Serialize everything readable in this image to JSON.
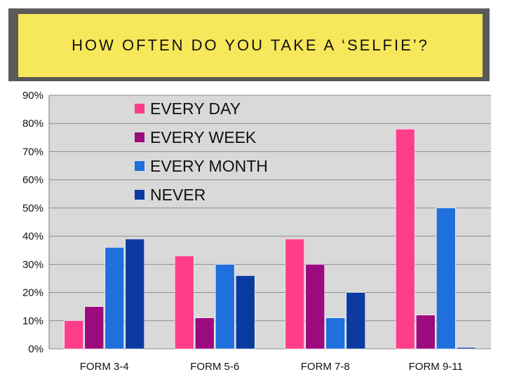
{
  "title": "HOW OFTEN DO YOU TAKE A ‘SELFIE’?",
  "colors": {
    "title_bg": "#f7e75a",
    "title_frame": "#5a5a5a",
    "plot_bg": "#d9d9d9",
    "gridline": "#8c8c8c",
    "series": [
      "#ff3d8b",
      "#9c0a7f",
      "#1f6fdc",
      "#0b3aa0"
    ]
  },
  "chart_data": {
    "type": "bar",
    "categories": [
      "FORM 3-4",
      "FORM 5-6",
      "FORM 7-8",
      "FORM 9-11"
    ],
    "series": [
      {
        "name": "EVERY DAY",
        "values": [
          10,
          33,
          39,
          78
        ]
      },
      {
        "name": "EVERY WEEK",
        "values": [
          15,
          11,
          30,
          12
        ]
      },
      {
        "name": "EVERY MONTH",
        "values": [
          36,
          30,
          11,
          50
        ]
      },
      {
        "name": "NEVER",
        "values": [
          39,
          26,
          20,
          0.5
        ]
      }
    ],
    "ylim": [
      0,
      90
    ],
    "yticks": [
      "0%",
      "10%",
      "20%",
      "30%",
      "40%",
      "50%",
      "60%",
      "70%",
      "80%",
      "90%"
    ],
    "grid": true,
    "legend_position": "top-center"
  }
}
